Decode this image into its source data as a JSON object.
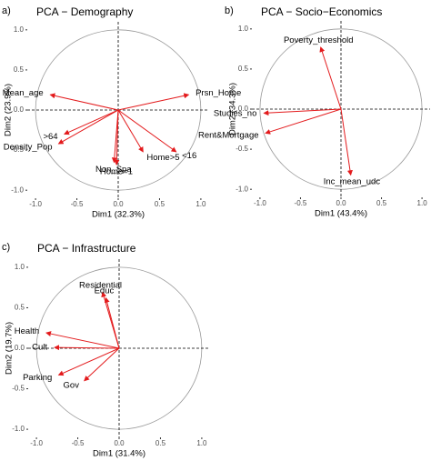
{
  "chart_data": [
    {
      "type": "vector",
      "panel_label": "a)",
      "title": "PCA − Demography",
      "xlabel": "Dim1 (32.3%)",
      "ylabel": "Dim2 (23.9%)",
      "xlim": [
        -1.1,
        1.1
      ],
      "ylim": [
        -1.1,
        1.1
      ],
      "xticks": [
        {
          "value": -1,
          "label": "-1.0"
        },
        {
          "value": -0.5,
          "label": "-0.5"
        },
        {
          "value": 0,
          "label": "0.0"
        },
        {
          "value": 0.5,
          "label": "0.5"
        },
        {
          "value": 1,
          "label": "1.0"
        }
      ],
      "yticks": [
        {
          "value": -1,
          "label": "-1.0"
        },
        {
          "value": -0.5,
          "label": "-0.5"
        },
        {
          "value": 0,
          "label": "0.0"
        },
        {
          "value": 0.5,
          "label": "0.5"
        },
        {
          "value": 1,
          "label": "1.0"
        }
      ],
      "color": "#e31a1c",
      "labels": [
        "Mean_age",
        "Prsn_Home",
        ">64",
        "Density_Pop",
        "Non_Spa",
        "Home=1",
        "Home>5",
        "<16"
      ],
      "x": [
        -0.82,
        0.85,
        -0.65,
        -0.72,
        -0.05,
        -0.02,
        0.3,
        0.7
      ],
      "y": [
        0.19,
        0.19,
        -0.3,
        -0.42,
        -0.65,
        -0.68,
        -0.52,
        -0.52
      ]
    },
    {
      "type": "vector",
      "panel_label": "b)",
      "title": "PCA − Socio−Economics",
      "xlabel": "Dim1 (43.4%)",
      "ylabel": "Dim2 (34.3%)",
      "xlim": [
        -1.1,
        1.1
      ],
      "ylim": [
        -1.1,
        1.1
      ],
      "xticks": [
        {
          "value": -1,
          "label": "-1.0"
        },
        {
          "value": -0.5,
          "label": "-0.5"
        },
        {
          "value": 0,
          "label": "0.0"
        },
        {
          "value": 0.5,
          "label": "0.5"
        },
        {
          "value": 1,
          "label": "1.0"
        }
      ],
      "yticks": [
        {
          "value": -1,
          "label": "-1.0"
        },
        {
          "value": -0.5,
          "label": "-0.5"
        },
        {
          "value": 0,
          "label": "0.0"
        },
        {
          "value": 0.5,
          "label": "0.5"
        },
        {
          "value": 1,
          "label": "1.0"
        }
      ],
      "color": "#e31a1c",
      "labels": [
        "Poverty_threshold",
        "Studies_no",
        "Rent&Mortgage",
        "Inc_mean_udc"
      ],
      "x": [
        -0.25,
        -0.95,
        -0.93,
        0.12
      ],
      "y": [
        0.77,
        -0.05,
        -0.3,
        -0.82
      ]
    },
    {
      "type": "vector",
      "panel_label": "c)",
      "title": "PCA − Infrastructure",
      "xlabel": "Dim1 (31.4%)",
      "ylabel": "Dim2 (19.7%)",
      "xlim": [
        -1.1,
        1.1
      ],
      "ylim": [
        -1.1,
        1.1
      ],
      "xticks": [
        {
          "value": -1,
          "label": "-1.0"
        },
        {
          "value": -0.5,
          "label": "-0.5"
        },
        {
          "value": 0,
          "label": "0.0"
        },
        {
          "value": 0.5,
          "label": "0.5"
        },
        {
          "value": 1,
          "label": "1.0"
        }
      ],
      "yticks": [
        {
          "value": -1,
          "label": "-1.0"
        },
        {
          "value": -0.5,
          "label": "-0.5"
        },
        {
          "value": 0,
          "label": "0.0"
        },
        {
          "value": 0.5,
          "label": "0.5"
        },
        {
          "value": 1,
          "label": "1.0"
        }
      ],
      "color": "#e31a1c",
      "labels": [
        "Residential",
        "Educ",
        "Health",
        "Cult",
        "Parking",
        "Gov"
      ],
      "x": [
        -0.2,
        -0.16,
        -0.88,
        -0.78,
        -0.73,
        -0.42
      ],
      "y": [
        0.69,
        0.62,
        0.19,
        0.01,
        -0.33,
        -0.4
      ]
    }
  ]
}
